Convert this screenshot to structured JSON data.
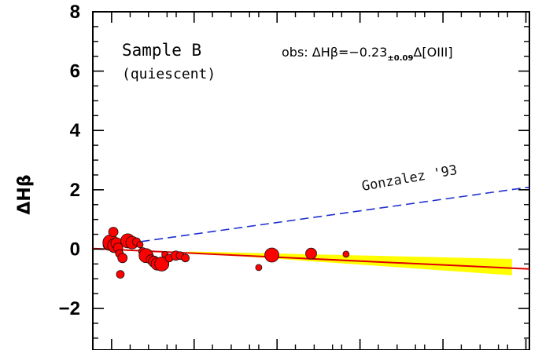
{
  "chart_data": {
    "type": "scatter",
    "ylabel": "ΔHβ",
    "xlabel": "",
    "ylim": [
      -3.4,
      8
    ],
    "yticks": [
      -2,
      0,
      2,
      4,
      6,
      8
    ],
    "ytick_labels": [
      "−2",
      "0",
      "2",
      "4",
      "6",
      "8"
    ],
    "xlim": [
      0,
      1
    ],
    "x_major_ticks": [
      0.043,
      0.232,
      0.422,
      0.612,
      0.802,
      0.992
    ],
    "x_minor_ticks": [
      0.0855,
      0.1275,
      0.17,
      0.191,
      0.274,
      0.317,
      0.359,
      0.38,
      0.464,
      0.507,
      0.549,
      0.57,
      0.654,
      0.697,
      0.739,
      0.76,
      0.844,
      0.887,
      0.929,
      0.95
    ],
    "annotations": {
      "sample_title": "Sample B",
      "sample_subtitle": "(quiescent)",
      "obs_prefix": "obs: ΔHβ=−0.23",
      "obs_subscript": "±0.09",
      "obs_suffix": "Δ[OIII]",
      "gonzalez_label": "Gonzalez '93"
    },
    "fit_line": {
      "x": [
        0.0,
        1.02
      ],
      "y": [
        0.02,
        -0.67
      ],
      "color": "#e00000"
    },
    "confidence_band": {
      "x_start": 0.22,
      "x_end": 0.96,
      "upper": [
        -0.08,
        -0.33
      ],
      "lower": [
        -0.12,
        -0.88
      ],
      "color": "#ffff00"
    },
    "gonzalez_line": {
      "x": [
        0.05,
        1.02
      ],
      "y": [
        0.13,
        2.09
      ],
      "color": "#1f2fd0"
    },
    "points": [
      {
        "x": 0.036,
        "y": 0.15,
        "s": 7
      },
      {
        "x": 0.041,
        "y": 0.22,
        "s": 10
      },
      {
        "x": 0.047,
        "y": 0.58,
        "s": 6
      },
      {
        "x": 0.05,
        "y": 0.12,
        "s": 9
      },
      {
        "x": 0.054,
        "y": 0.2,
        "s": 7
      },
      {
        "x": 0.058,
        "y": 0.05,
        "s": 6
      },
      {
        "x": 0.061,
        "y": -0.15,
        "s": 5
      },
      {
        "x": 0.063,
        "y": -0.85,
        "s": 5
      },
      {
        "x": 0.068,
        "y": -0.3,
        "s": 6
      },
      {
        "x": 0.08,
        "y": 0.28,
        "s": 9
      },
      {
        "x": 0.09,
        "y": 0.22,
        "s": 8
      },
      {
        "x": 0.1,
        "y": 0.25,
        "s": 5
      },
      {
        "x": 0.108,
        "y": 0.15,
        "s": 4
      },
      {
        "x": 0.114,
        "y": -0.08,
        "s": 5
      },
      {
        "x": 0.122,
        "y": -0.22,
        "s": 9
      },
      {
        "x": 0.133,
        "y": -0.35,
        "s": 6
      },
      {
        "x": 0.14,
        "y": -0.42,
        "s": 7
      },
      {
        "x": 0.148,
        "y": -0.5,
        "s": 8
      },
      {
        "x": 0.158,
        "y": -0.5,
        "s": 9
      },
      {
        "x": 0.165,
        "y": -0.18,
        "s": 4
      },
      {
        "x": 0.175,
        "y": -0.3,
        "s": 5
      },
      {
        "x": 0.19,
        "y": -0.22,
        "s": 6
      },
      {
        "x": 0.2,
        "y": -0.22,
        "s": 5
      },
      {
        "x": 0.212,
        "y": -0.3,
        "s": 5
      },
      {
        "x": 0.38,
        "y": -0.62,
        "s": 4
      },
      {
        "x": 0.41,
        "y": -0.2,
        "s": 9
      },
      {
        "x": 0.5,
        "y": -0.15,
        "s": 7
      },
      {
        "x": 0.58,
        "y": -0.17,
        "s": 4
      }
    ]
  }
}
